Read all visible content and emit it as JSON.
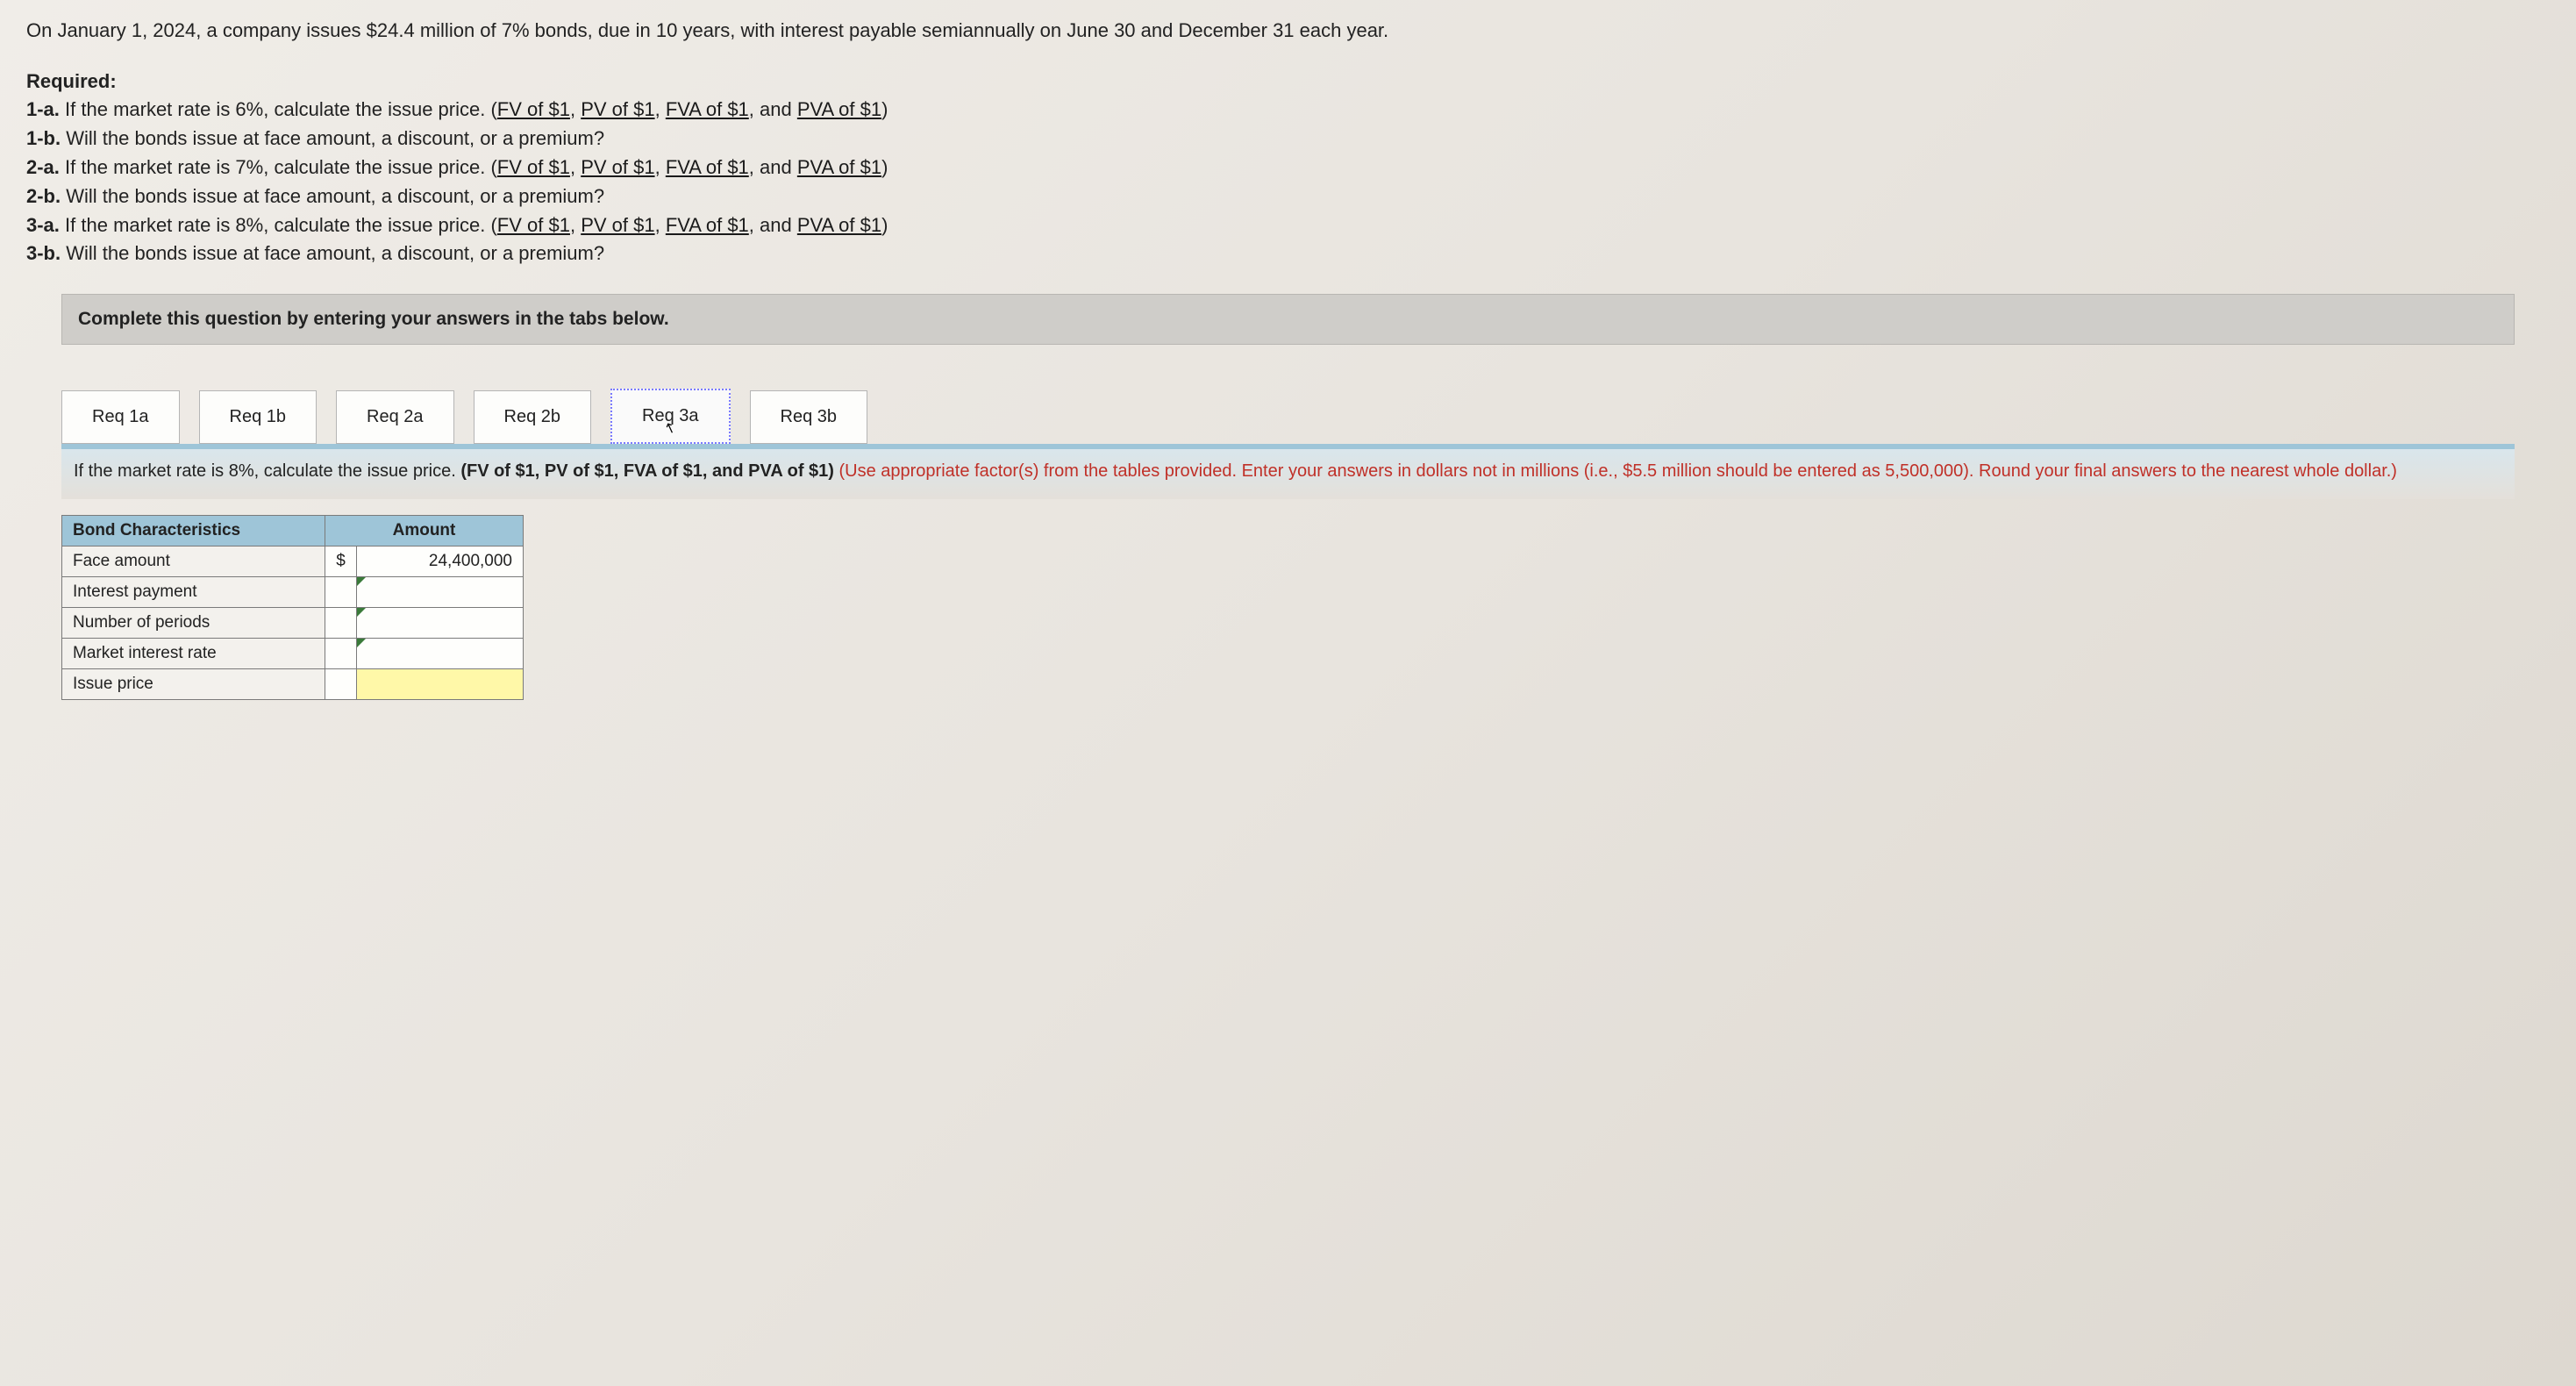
{
  "intro": "On January 1, 2024, a company issues $24.4 million of 7% bonds, due in 10 years, with interest payable semiannually on June 30 and December 31 each year.",
  "required": {
    "heading": "Required:",
    "items": [
      {
        "num": "1-a.",
        "text_before": "If the market rate is 6%, calculate the issue price. (",
        "links": [
          "FV of $1",
          "PV of $1",
          "FVA of $1",
          "PVA of $1"
        ],
        "text_after": ")"
      },
      {
        "num": "1-b.",
        "text_plain": "Will the bonds issue at face amount, a discount, or a premium?"
      },
      {
        "num": "2-a.",
        "text_before": "If the market rate is 7%, calculate the issue price. (",
        "links": [
          "FV of $1",
          "PV of $1",
          "FVA of $1",
          "PVA of $1"
        ],
        "text_after": ")"
      },
      {
        "num": "2-b.",
        "text_plain": "Will the bonds issue at face amount, a discount, or a premium?"
      },
      {
        "num": "3-a.",
        "text_before": "If the market rate is 8%, calculate the issue price. (",
        "links": [
          "FV of $1",
          "PV of $1",
          "FVA of $1",
          "PVA of $1"
        ],
        "text_after": ")"
      },
      {
        "num": "3-b.",
        "text_plain": "Will the bonds issue at face amount, a discount, or a premium?"
      }
    ]
  },
  "instruction_bar": "Complete this question by entering your answers in the tabs below.",
  "tabs": [
    {
      "label": "Req 1a",
      "active": false
    },
    {
      "label": "Req 1b",
      "active": false
    },
    {
      "label": "Req 2a",
      "active": false
    },
    {
      "label": "Req 2b",
      "active": false
    },
    {
      "label": "Req 3a",
      "active": true
    },
    {
      "label": "Req 3b",
      "active": false
    }
  ],
  "panel": {
    "line1_prefix": "If the market rate is 8%, calculate the issue price. ",
    "line1_bold": "(FV of $1, PV of $1, FVA of $1, and PVA of $1)",
    "line1_red": " (Use appropriate factor(s) from the tables provided. Enter your answers in dollars not in millions (i.e., $5.5 million should be entered as 5,500,000). Round your final answers to the nearest whole dollar.)"
  },
  "table": {
    "headers": [
      "Bond Characteristics",
      "Amount"
    ],
    "rows": [
      {
        "label": "Face amount",
        "dollar": "$",
        "amount": "24,400,000",
        "tick": false,
        "highlight": false
      },
      {
        "label": "Interest payment",
        "dollar": "",
        "amount": "",
        "tick": true,
        "highlight": false
      },
      {
        "label": "Number of periods",
        "dollar": "",
        "amount": "",
        "tick": true,
        "highlight": false
      },
      {
        "label": "Market interest rate",
        "dollar": "",
        "amount": "",
        "tick": true,
        "highlight": false
      },
      {
        "label": "Issue price",
        "dollar": "",
        "amount": "",
        "tick": false,
        "highlight": true
      }
    ]
  },
  "colors": {
    "header_bg": "#9ec5d8",
    "panel_border": "#9ec5d8",
    "highlight": "#fff8a8",
    "red_text": "#c03028",
    "instruction_bg": "#cfcdc9"
  }
}
